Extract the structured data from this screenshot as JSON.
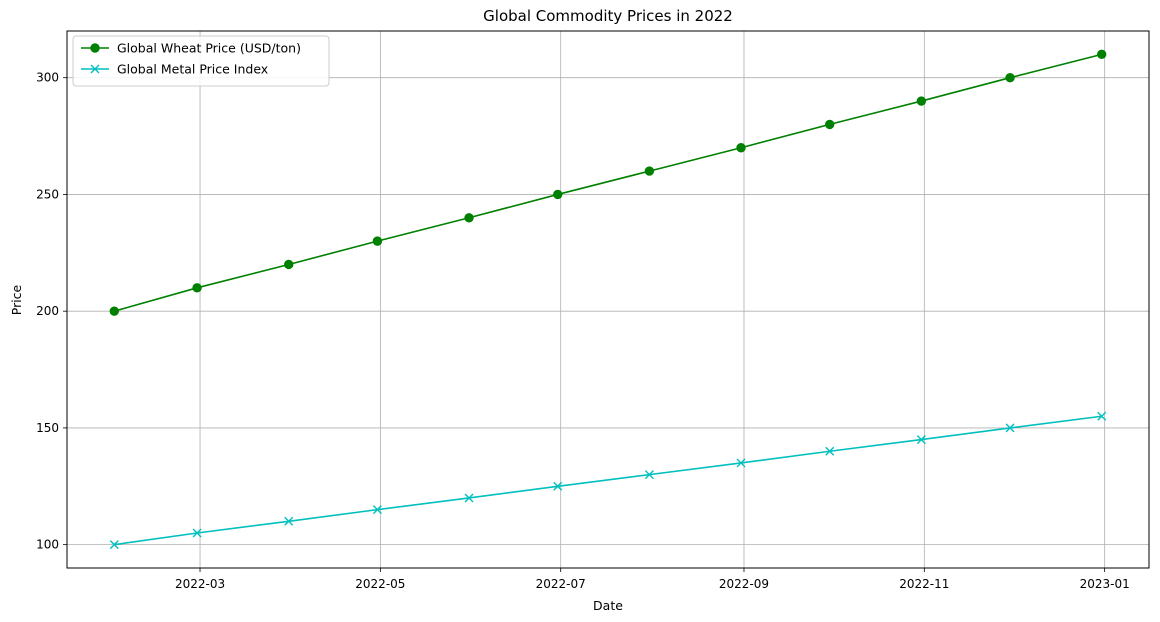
{
  "chart_data": {
    "type": "line",
    "title": "Global Commodity Prices in 2022",
    "xlabel": "Date",
    "ylabel": "Price",
    "x": [
      "2022-01-31",
      "2022-02-28",
      "2022-03-31",
      "2022-04-30",
      "2022-05-31",
      "2022-06-30",
      "2022-07-31",
      "2022-08-31",
      "2022-09-30",
      "2022-10-31",
      "2022-11-30",
      "2022-12-31"
    ],
    "xlim": [
      "2022-01-15",
      "2023-01-16"
    ],
    "ylim": [
      90,
      320
    ],
    "x_ticks": [
      "2022-03-01",
      "2022-05-01",
      "2022-07-01",
      "2022-09-01",
      "2022-11-01",
      "2023-01-01"
    ],
    "x_tick_labels": [
      "2022-03",
      "2022-05",
      "2022-07",
      "2022-09",
      "2022-11",
      "2023-01"
    ],
    "y_ticks": [
      100,
      150,
      200,
      250,
      300
    ],
    "y_tick_labels": [
      "100",
      "150",
      "200",
      "250",
      "300"
    ],
    "grid": true,
    "legend_position": "top-left",
    "series": [
      {
        "name": "Global Wheat Price (USD/ton)",
        "color": "#008000",
        "marker": "circle",
        "values": [
          200,
          210,
          220,
          230,
          240,
          250,
          260,
          270,
          280,
          290,
          300,
          310
        ]
      },
      {
        "name": "Global Metal Price Index",
        "color": "#00bfbf",
        "marker": "x",
        "values": [
          100,
          105,
          110,
          115,
          120,
          125,
          130,
          135,
          140,
          145,
          150,
          155
        ]
      }
    ]
  }
}
